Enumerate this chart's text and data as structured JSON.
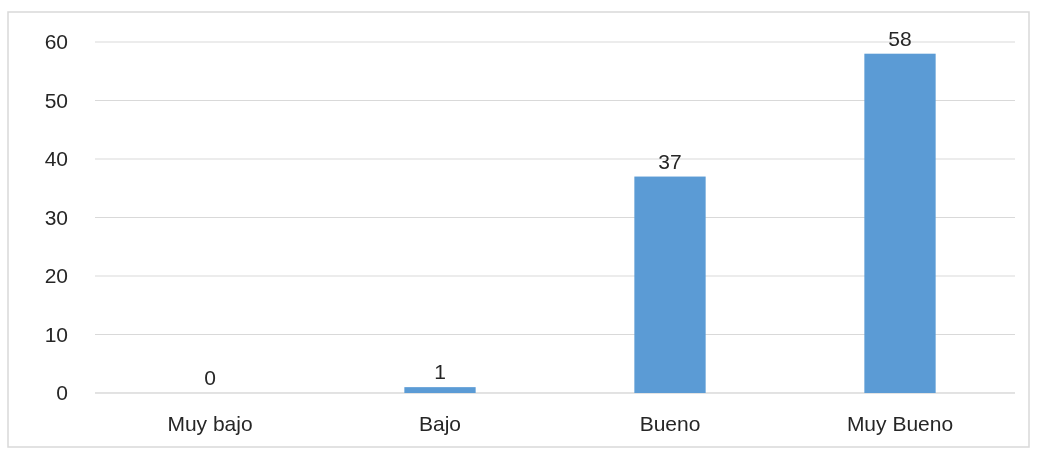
{
  "chart_data": {
    "type": "bar",
    "categories": [
      "Muy bajo",
      "Bajo",
      "Bueno",
      "Muy Bueno"
    ],
    "values": [
      0,
      1,
      37,
      58
    ],
    "color": "#5b9bd5",
    "ylim": [
      0,
      60
    ],
    "yticks": [
      0,
      10,
      20,
      30,
      40,
      50,
      60
    ],
    "grid": "y",
    "data_labels": true
  }
}
